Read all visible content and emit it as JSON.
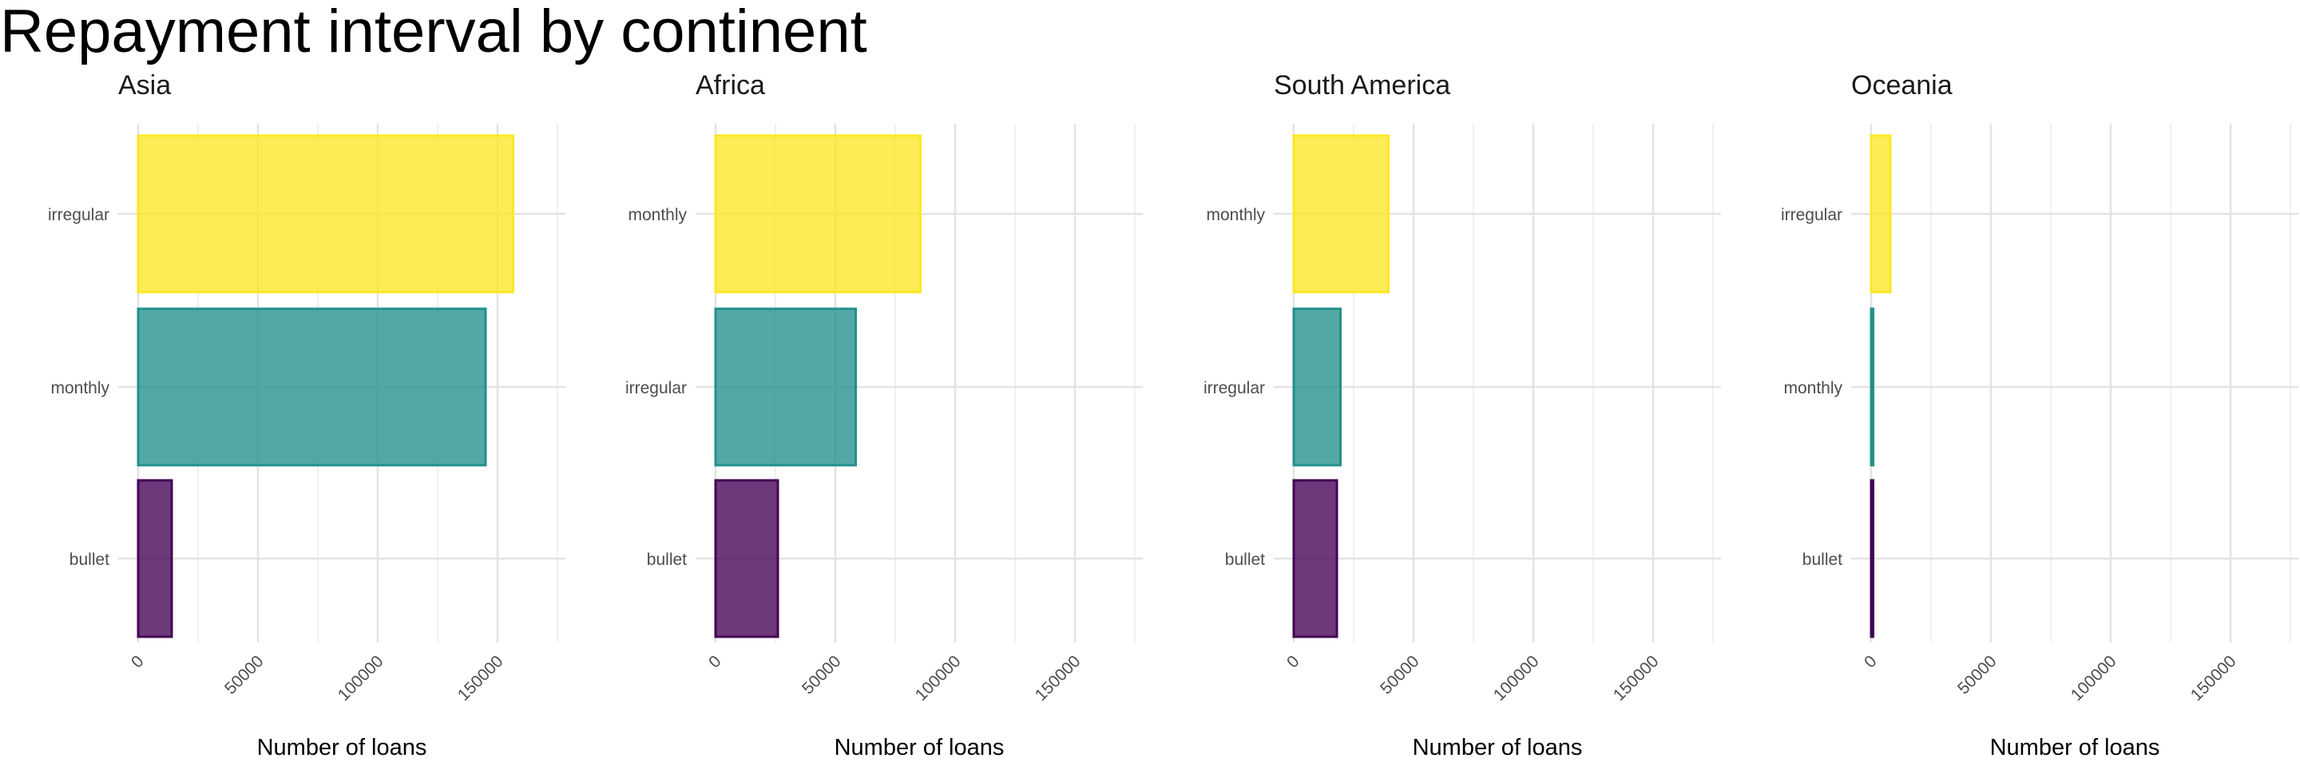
{
  "title": "Repayment interval by continent",
  "colors": {
    "bullet": "#440154",
    "irregular_or_monthly_mid": "#21908C",
    "top": "#FDE725"
  },
  "chart_data": [
    {
      "type": "bar",
      "orientation": "horizontal",
      "title": "Asia",
      "xlabel": "Number of loans",
      "ylabel": "",
      "xlim": [
        0,
        176000
      ],
      "xticks": [
        0,
        50000,
        100000,
        150000
      ],
      "categories": [
        "bullet",
        "monthly",
        "irregular"
      ],
      "values": [
        14000,
        145000,
        156500
      ],
      "colors": [
        "#440154",
        "#21908C",
        "#FDE725"
      ],
      "grid": true,
      "legend": "none"
    },
    {
      "type": "bar",
      "orientation": "horizontal",
      "title": "Africa",
      "xlabel": "Number of loans",
      "ylabel": "",
      "xlim": [
        0,
        176000
      ],
      "xticks": [
        0,
        50000,
        100000,
        150000
      ],
      "categories": [
        "bullet",
        "irregular",
        "monthly"
      ],
      "values": [
        26000,
        58500,
        85500
      ],
      "colors": [
        "#440154",
        "#21908C",
        "#FDE725"
      ],
      "grid": true,
      "legend": "none"
    },
    {
      "type": "bar",
      "orientation": "horizontal",
      "title": "South America",
      "xlabel": "Number of loans",
      "ylabel": "",
      "xlim": [
        0,
        176000
      ],
      "xticks": [
        0,
        50000,
        100000,
        150000
      ],
      "categories": [
        "bullet",
        "irregular",
        "monthly"
      ],
      "values": [
        18000,
        19500,
        39500
      ],
      "colors": [
        "#440154",
        "#21908C",
        "#FDE725"
      ],
      "grid": true,
      "legend": "none"
    },
    {
      "type": "bar",
      "orientation": "horizontal",
      "title": "Oceania",
      "xlabel": "Number of loans",
      "ylabel": "",
      "xlim": [
        0,
        176000
      ],
      "xticks": [
        0,
        50000,
        100000,
        150000
      ],
      "categories": [
        "bullet",
        "monthly",
        "irregular"
      ],
      "values": [
        300,
        600,
        8000
      ],
      "colors": [
        "#440154",
        "#21908C",
        "#FDE725"
      ],
      "grid": true,
      "legend": "none"
    }
  ]
}
